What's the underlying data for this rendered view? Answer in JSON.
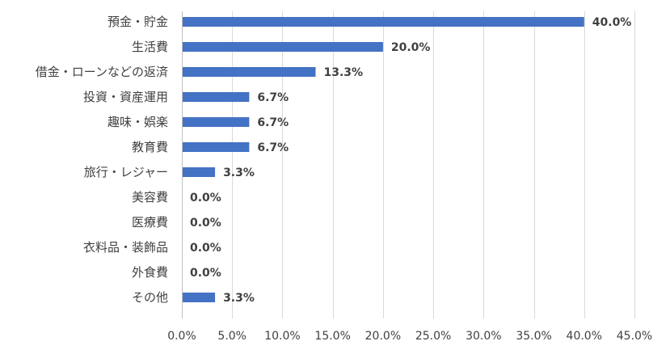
{
  "chart_data": {
    "type": "bar",
    "orientation": "horizontal",
    "title": "",
    "xlabel": "",
    "ylabel": "",
    "categories": [
      "預金・貯金",
      "生活費",
      "借金・ローンなどの返済",
      "投資・資産運用",
      "趣味・娯楽",
      "教育費",
      "旅行・レジャー",
      "美容費",
      "医療費",
      "衣料品・装飾品",
      "外食費",
      "その他"
    ],
    "values": [
      40.0,
      20.0,
      13.3,
      6.7,
      6.7,
      6.7,
      3.3,
      0.0,
      0.0,
      0.0,
      0.0,
      3.3
    ],
    "data_labels": [
      "40.0%",
      "20.0%",
      "13.3%",
      "6.7%",
      "6.7%",
      "6.7%",
      "3.3%",
      "0.0%",
      "0.0%",
      "0.0%",
      "0.0%",
      "3.3%"
    ],
    "xlim": [
      0,
      45
    ],
    "x_ticks": [
      0,
      5,
      10,
      15,
      20,
      25,
      30,
      35,
      40,
      45
    ],
    "x_tick_labels": [
      "0.0%",
      "5.0%",
      "10.0%",
      "15.0%",
      "20.0%",
      "25.0%",
      "30.0%",
      "35.0%",
      "40.0%",
      "45.0%"
    ],
    "grid": "vertical",
    "legend": "none",
    "bar_color": "#4472c4"
  }
}
